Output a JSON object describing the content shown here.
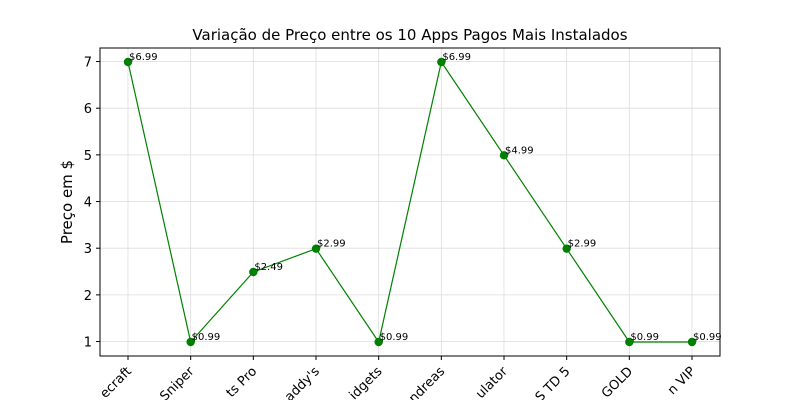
{
  "chart_data": {
    "type": "line",
    "title": "Variação de Preço entre os 10 Apps Pagos Mais Instalados",
    "xlabel": "",
    "ylabel": "Preço em $",
    "categories": [
      "ecraft",
      "Sniper",
      "ts Pro",
      "addy's",
      "idgets",
      "ndreas",
      "ulator",
      "S TD 5",
      "GOLD",
      "n VIP"
    ],
    "series": [
      {
        "values": [
          6.99,
          0.99,
          2.49,
          2.99,
          0.99,
          6.99,
          4.99,
          2.99,
          0.99,
          0.99
        ],
        "labels": [
          "$6.99",
          "$0.99",
          "$2.49",
          "$2.99",
          "$0.99",
          "$6.99",
          "$4.99",
          "$2.99",
          "$0.99",
          "$0.99"
        ],
        "color": "#008000"
      }
    ],
    "ylim": [
      0.69,
      7.29
    ],
    "yticks": [
      1,
      2,
      3,
      4,
      5,
      6,
      7
    ],
    "grid": true,
    "legend": "none"
  }
}
